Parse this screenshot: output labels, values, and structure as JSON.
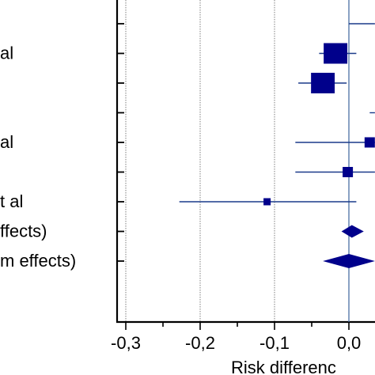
{
  "chart_data": {
    "type": "forest",
    "xlabel": "Risk differenc",
    "xlim": [
      -0.32,
      0.035
    ],
    "x_ticks": [
      {
        "value": -0.3,
        "label": "-0,3"
      },
      {
        "value": -0.2,
        "label": "-0,2"
      },
      {
        "value": -0.1,
        "label": "-0,1"
      },
      {
        "value": 0.0,
        "label": "0,0"
      }
    ],
    "gridlines": [
      -0.3,
      -0.2,
      -0.1
    ],
    "reference_line": 0.0,
    "rows": [
      {
        "label": "",
        "estimate": null,
        "ci": [
          0.0,
          0.035
        ],
        "marker": "none"
      },
      {
        "label": "al",
        "estimate": -0.018,
        "ci": [
          -0.04,
          0.01
        ],
        "marker": "square-large"
      },
      {
        "label": "",
        "estimate": -0.035,
        "ci": [
          -0.068,
          -0.003
        ],
        "marker": "square-large"
      },
      {
        "label": "",
        "estimate": null,
        "ci": [
          0.028,
          0.035
        ],
        "marker": "none"
      },
      {
        "label": "al",
        "estimate": 0.028,
        "ci": [
          -0.072,
          0.035
        ],
        "marker": "square-small"
      },
      {
        "label": "",
        "estimate": -0.0015,
        "ci": [
          -0.072,
          0.035
        ],
        "marker": "square-small"
      },
      {
        "label": "t al",
        "estimate": -0.11,
        "ci": [
          -0.228,
          0.01
        ],
        "marker": "square-tiny"
      },
      {
        "label": "ffects)",
        "estimate": 0.004,
        "ci": [
          -0.01,
          0.02
        ],
        "marker": "diamond"
      },
      {
        "label": "m effects)",
        "estimate": 0.0,
        "ci": [
          -0.035,
          0.035
        ],
        "marker": "diamond"
      }
    ],
    "colors": {
      "marker": "#00008b",
      "ci_line": "#1a3a8a",
      "reference": "#4a6fa5",
      "grid": "#7f7f7f",
      "axis": "#000000"
    }
  }
}
